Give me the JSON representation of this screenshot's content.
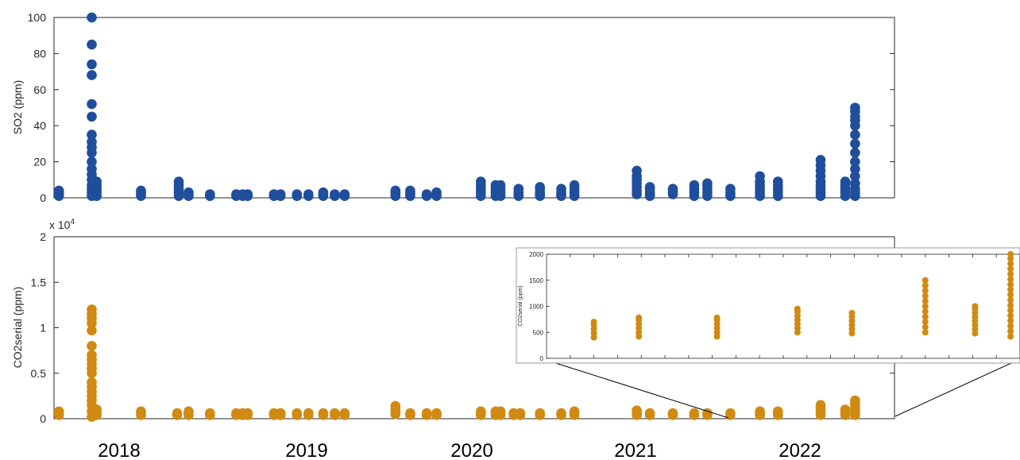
{
  "colors": {
    "so2": "#1f4e9c",
    "co2": "#d08a12",
    "axis": "#262626"
  },
  "chart_data": [
    {
      "type": "scatter",
      "panel": "top",
      "ylabel": "SO2 (ppm)",
      "xlim": [
        2017.62,
        2022.74
      ],
      "ylim": [
        0,
        100
      ],
      "yticks": [
        0,
        20,
        40,
        60,
        80,
        100
      ],
      "x_year_labels": [
        "2018",
        "2019",
        "2020",
        "2021",
        "2022"
      ],
      "series_color": "#1f4e9c",
      "series": [
        {
          "x": 2017.65,
          "values": [
            1,
            2,
            3,
            4
          ]
        },
        {
          "x": 2017.85,
          "values": [
            1,
            3,
            5,
            7,
            10,
            13,
            16,
            20,
            25,
            28,
            31,
            35,
            45,
            52,
            68,
            74,
            85,
            100
          ]
        },
        {
          "x": 2017.88,
          "values": [
            1,
            3,
            5,
            7,
            9
          ]
        },
        {
          "x": 2018.15,
          "values": [
            1,
            2,
            3,
            4
          ]
        },
        {
          "x": 2018.38,
          "values": [
            1,
            3,
            5,
            7,
            9
          ]
        },
        {
          "x": 2018.44,
          "values": [
            1,
            2,
            3
          ]
        },
        {
          "x": 2018.57,
          "values": [
            1,
            2
          ]
        },
        {
          "x": 2018.73,
          "values": [
            1,
            2
          ]
        },
        {
          "x": 2018.77,
          "values": [
            1,
            2
          ]
        },
        {
          "x": 2018.8,
          "values": [
            1,
            2
          ]
        },
        {
          "x": 2018.96,
          "values": [
            1,
            2
          ]
        },
        {
          "x": 2019.0,
          "values": [
            1,
            2
          ]
        },
        {
          "x": 2019.1,
          "values": [
            1,
            2
          ]
        },
        {
          "x": 2019.17,
          "values": [
            1,
            2
          ]
        },
        {
          "x": 2019.26,
          "values": [
            1,
            2,
            3
          ]
        },
        {
          "x": 2019.33,
          "values": [
            1,
            2
          ]
        },
        {
          "x": 2019.39,
          "values": [
            1,
            2
          ]
        },
        {
          "x": 2019.7,
          "values": [
            1,
            2,
            3,
            4
          ]
        },
        {
          "x": 2019.79,
          "values": [
            1,
            2,
            3,
            4
          ]
        },
        {
          "x": 2019.89,
          "values": [
            1,
            2
          ]
        },
        {
          "x": 2019.95,
          "values": [
            1,
            2,
            3
          ]
        },
        {
          "x": 2020.22,
          "values": [
            1,
            3,
            5,
            7,
            9
          ]
        },
        {
          "x": 2020.31,
          "values": [
            1,
            3,
            5,
            7
          ]
        },
        {
          "x": 2020.34,
          "values": [
            1,
            3,
            5,
            7
          ]
        },
        {
          "x": 2020.45,
          "values": [
            1,
            2,
            3,
            5
          ]
        },
        {
          "x": 2020.58,
          "values": [
            1,
            2,
            3,
            5,
            6
          ]
        },
        {
          "x": 2020.71,
          "values": [
            1,
            2,
            3,
            5
          ]
        },
        {
          "x": 2020.79,
          "values": [
            1,
            3,
            5,
            7
          ]
        },
        {
          "x": 2021.17,
          "values": [
            2,
            4,
            6,
            8,
            10,
            12,
            15
          ]
        },
        {
          "x": 2021.25,
          "values": [
            1,
            2,
            3,
            5,
            6
          ]
        },
        {
          "x": 2021.39,
          "values": [
            2,
            3,
            4,
            5
          ]
        },
        {
          "x": 2021.52,
          "values": [
            1,
            3,
            5,
            7
          ]
        },
        {
          "x": 2021.6,
          "values": [
            1,
            3,
            5,
            7,
            8
          ]
        },
        {
          "x": 2021.74,
          "values": [
            1,
            2,
            3,
            5
          ]
        },
        {
          "x": 2021.92,
          "values": [
            1,
            3,
            5,
            7,
            9,
            12
          ]
        },
        {
          "x": 2022.03,
          "values": [
            1,
            3,
            5,
            7,
            9
          ]
        },
        {
          "x": 2022.29,
          "values": [
            1,
            3,
            5,
            7,
            9,
            12,
            15,
            18,
            21
          ]
        },
        {
          "x": 2022.44,
          "values": [
            1,
            3,
            5,
            7,
            9
          ]
        },
        {
          "x": 2022.5,
          "values": [
            1,
            3,
            5,
            8,
            12,
            16,
            20,
            25,
            30,
            35,
            40,
            43,
            45,
            48,
            50
          ]
        }
      ]
    },
    {
      "type": "scatter",
      "panel": "bottom",
      "ylabel": "CO2serial (ppm)",
      "exponent_label": "x 10",
      "exponent_power": "4",
      "xlim": [
        2017.62,
        2022.74
      ],
      "ylim": [
        0,
        2
      ],
      "yticks": [
        0,
        0.5,
        1,
        1.5,
        2
      ],
      "ytick_labels": [
        "0",
        "0.5",
        "1",
        "1.5",
        "2"
      ],
      "x_year_labels": [
        "2018",
        "2019",
        "2020",
        "2021",
        "2022"
      ],
      "series_color": "#d08a12",
      "series": [
        {
          "x": 2017.65,
          "values": [
            0.04,
            0.06,
            0.08
          ]
        },
        {
          "x": 2017.85,
          "values": [
            0.02,
            0.08,
            0.15,
            0.2,
            0.25,
            0.3,
            0.35,
            0.4,
            0.5,
            0.55,
            0.6,
            0.65,
            0.7,
            0.8,
            0.97,
            1.05,
            1.1,
            1.15,
            1.2
          ]
        },
        {
          "x": 2017.88,
          "values": [
            0.04,
            0.07,
            0.1
          ]
        },
        {
          "x": 2018.15,
          "values": [
            0.04,
            0.06,
            0.08
          ]
        },
        {
          "x": 2018.37,
          "values": [
            0.04,
            0.06
          ]
        },
        {
          "x": 2018.44,
          "values": [
            0.04,
            0.06,
            0.08
          ]
        },
        {
          "x": 2018.57,
          "values": [
            0.04,
            0.06
          ]
        },
        {
          "x": 2018.73,
          "values": [
            0.04,
            0.06
          ]
        },
        {
          "x": 2018.77,
          "values": [
            0.04,
            0.06
          ]
        },
        {
          "x": 2018.8,
          "values": [
            0.04,
            0.06
          ]
        },
        {
          "x": 2018.96,
          "values": [
            0.04,
            0.06
          ]
        },
        {
          "x": 2019.0,
          "values": [
            0.04,
            0.06
          ]
        },
        {
          "x": 2019.1,
          "values": [
            0.04,
            0.06
          ]
        },
        {
          "x": 2019.17,
          "values": [
            0.04,
            0.06
          ]
        },
        {
          "x": 2019.26,
          "values": [
            0.04,
            0.06
          ]
        },
        {
          "x": 2019.33,
          "values": [
            0.04,
            0.06
          ]
        },
        {
          "x": 2019.39,
          "values": [
            0.04,
            0.06
          ]
        },
        {
          "x": 2019.7,
          "values": [
            0.05,
            0.08,
            0.11,
            0.14
          ]
        },
        {
          "x": 2019.79,
          "values": [
            0.04,
            0.06
          ]
        },
        {
          "x": 2019.89,
          "values": [
            0.04,
            0.06
          ]
        },
        {
          "x": 2019.95,
          "values": [
            0.04,
            0.06
          ]
        },
        {
          "x": 2020.22,
          "values": [
            0.04,
            0.06,
            0.08
          ]
        },
        {
          "x": 2020.31,
          "values": [
            0.04,
            0.06,
            0.08
          ]
        },
        {
          "x": 2020.34,
          "values": [
            0.04,
            0.06,
            0.08
          ]
        },
        {
          "x": 2020.42,
          "values": [
            0.04,
            0.06
          ]
        },
        {
          "x": 2020.46,
          "values": [
            0.04,
            0.06
          ]
        },
        {
          "x": 2020.58,
          "values": [
            0.04,
            0.06
          ]
        },
        {
          "x": 2020.71,
          "values": [
            0.04,
            0.06
          ]
        },
        {
          "x": 2020.79,
          "values": [
            0.04,
            0.06,
            0.08
          ]
        },
        {
          "x": 2021.17,
          "values": [
            0.04,
            0.06,
            0.09
          ]
        },
        {
          "x": 2021.25,
          "values": [
            0.04,
            0.06
          ]
        },
        {
          "x": 2021.39,
          "values": [
            0.04,
            0.06
          ]
        },
        {
          "x": 2021.52,
          "values": [
            0.04,
            0.06
          ]
        },
        {
          "x": 2021.6,
          "values": [
            0.04,
            0.06
          ]
        },
        {
          "x": 2021.74,
          "values": [
            0.04,
            0.06
          ]
        },
        {
          "x": 2021.92,
          "values": [
            0.04,
            0.06,
            0.08
          ]
        },
        {
          "x": 2022.03,
          "values": [
            0.04,
            0.06,
            0.08
          ]
        },
        {
          "x": 2022.29,
          "values": [
            0.04,
            0.07,
            0.1,
            0.13,
            0.15
          ]
        },
        {
          "x": 2022.44,
          "values": [
            0.04,
            0.06,
            0.1
          ]
        },
        {
          "x": 2022.5,
          "values": [
            0.04,
            0.08,
            0.12,
            0.16,
            0.2
          ]
        }
      ]
    },
    {
      "type": "scatter",
      "panel": "inset",
      "ylabel": "CO2serial (ppm)",
      "ylim": [
        0,
        2000
      ],
      "yticks": [
        0,
        500,
        1000,
        1500,
        2000
      ],
      "xlim": [
        0,
        20
      ],
      "series_color": "#d08a12",
      "series": [
        {
          "x": 2.0,
          "values": [
            400,
            480,
            560,
            640,
            700
          ]
        },
        {
          "x": 3.9,
          "values": [
            420,
            500,
            580,
            660,
            740,
            780
          ]
        },
        {
          "x": 7.2,
          "values": [
            420,
            500,
            580,
            660,
            740,
            780
          ]
        },
        {
          "x": 10.6,
          "values": [
            500,
            580,
            660,
            740,
            820,
            900,
            950
          ]
        },
        {
          "x": 12.9,
          "values": [
            480,
            560,
            640,
            720,
            800,
            870
          ]
        },
        {
          "x": 16.0,
          "values": [
            500,
            600,
            700,
            800,
            900,
            1000,
            1100,
            1200,
            1300,
            1400,
            1500
          ]
        },
        {
          "x": 18.1,
          "values": [
            480,
            560,
            640,
            720,
            800,
            880,
            960,
            1000
          ]
        },
        {
          "x": 19.6,
          "values": [
            420,
            520,
            620,
            720,
            820,
            920,
            1020,
            1120,
            1220,
            1320,
            1420,
            1520,
            1620,
            1720,
            1820,
            1920,
            2000
          ]
        }
      ]
    }
  ]
}
